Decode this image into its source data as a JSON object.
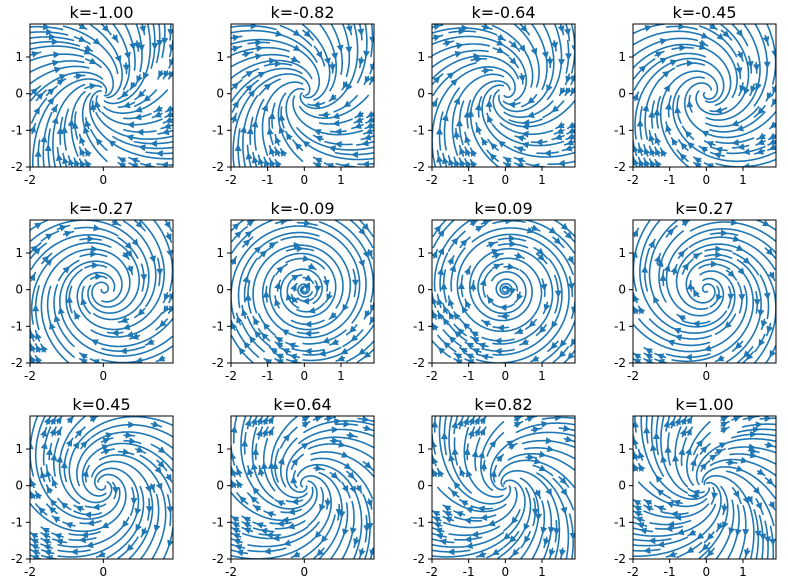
{
  "chart_data": {
    "type": "streamplot",
    "field": {
      "u": "y + k*x",
      "v": "-x + k*y"
    },
    "xlim": [
      -2,
      1.9
    ],
    "ylim": [
      -2,
      1.9
    ],
    "yticks": [
      -2,
      -1,
      0,
      1
    ],
    "stream_color": "#1f77b4",
    "grid": false,
    "panels": [
      {
        "k": -1.0,
        "title": "k=-1.00",
        "xticks": [
          -2,
          0
        ]
      },
      {
        "k": -0.82,
        "title": "k=-0.82",
        "xticks": [
          -2,
          -1,
          0,
          1
        ]
      },
      {
        "k": -0.64,
        "title": "k=-0.64",
        "xticks": [
          -2,
          -1,
          0,
          1
        ]
      },
      {
        "k": -0.45,
        "title": "k=-0.45",
        "xticks": [
          -2,
          -1,
          0,
          1
        ]
      },
      {
        "k": -0.27,
        "title": "k=-0.27",
        "xticks": [
          -2,
          0
        ]
      },
      {
        "k": -0.09,
        "title": "k=-0.09",
        "xticks": [
          -2,
          -1,
          0,
          1
        ]
      },
      {
        "k": 0.09,
        "title": "k=0.09",
        "xticks": [
          -2,
          -1,
          0,
          1
        ]
      },
      {
        "k": 0.27,
        "title": "k=0.27",
        "xticks": [
          -2,
          0
        ]
      },
      {
        "k": 0.45,
        "title": "k=0.45",
        "xticks": [
          -2,
          0
        ]
      },
      {
        "k": 0.64,
        "title": "k=0.64",
        "xticks": [
          -2,
          0
        ]
      },
      {
        "k": 0.82,
        "title": "k=0.82",
        "xticks": [
          -2,
          -1,
          0,
          1
        ]
      },
      {
        "k": 1.0,
        "title": "k=1.00",
        "xticks": [
          -2,
          -1,
          0,
          1
        ]
      }
    ]
  }
}
